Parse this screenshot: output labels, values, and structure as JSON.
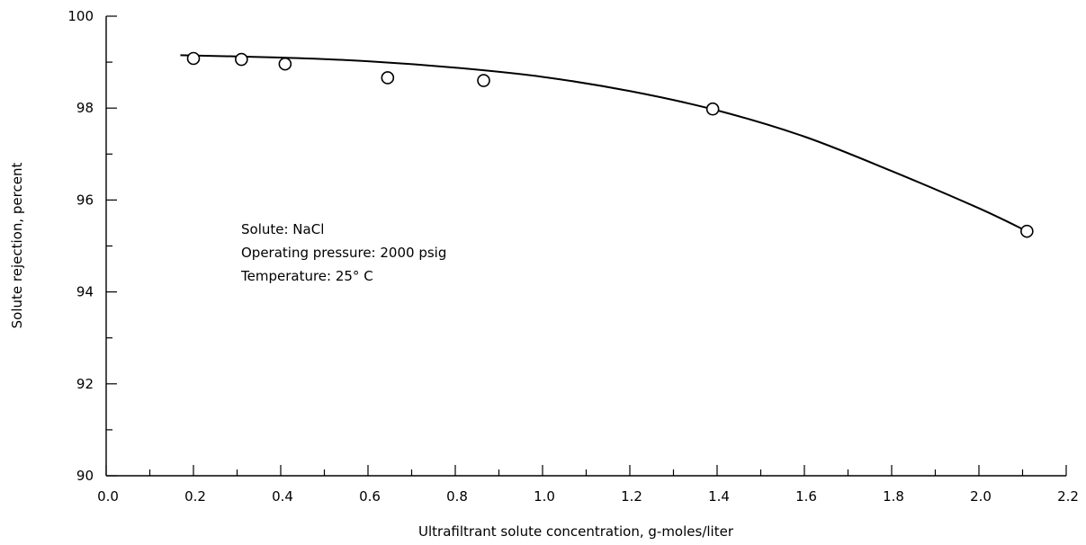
{
  "chart_data": {
    "type": "scatter",
    "xlabel": "Ultrafiltrant solute concentration, g-moles/liter",
    "ylabel": "Solute rejection, percent",
    "xlim": [
      0.0,
      2.2
    ],
    "ylim": [
      90,
      100
    ],
    "x_major_ticks": [
      0.0,
      0.2,
      0.4,
      0.6,
      0.8,
      1.0,
      1.2,
      1.4,
      1.6,
      1.8,
      2.0,
      2.2
    ],
    "x_tick_labels": [
      "0.0",
      "0.2",
      "0.4",
      "0.6",
      "0.8",
      "1.0",
      "1.2",
      "1.4",
      "1.6",
      "1.8",
      "2.0",
      "2.2"
    ],
    "y_major_ticks": [
      90,
      92,
      94,
      96,
      98,
      100
    ],
    "y_tick_labels": [
      "90",
      "92",
      "94",
      "96",
      "98",
      "100"
    ],
    "grid": false,
    "series": [
      {
        "marker": "open-circle",
        "x": [
          0.2,
          0.31,
          0.41,
          0.645,
          0.865,
          1.39,
          2.11
        ],
        "y": [
          99.08,
          99.06,
          98.96,
          98.66,
          98.6,
          97.98,
          95.32
        ]
      }
    ],
    "fit_curve": {
      "x": [
        0.17,
        0.4,
        0.6,
        0.8,
        1.0,
        1.2,
        1.4,
        1.6,
        1.8,
        2.0,
        2.11
      ],
      "y": [
        99.15,
        99.1,
        99.02,
        98.88,
        98.68,
        98.37,
        97.95,
        97.38,
        96.63,
        95.82,
        95.32
      ]
    },
    "annotations": [
      "Solute:  NaCl",
      "Operating pressure:  2000 psig",
      "Temperature:  25° C"
    ]
  }
}
